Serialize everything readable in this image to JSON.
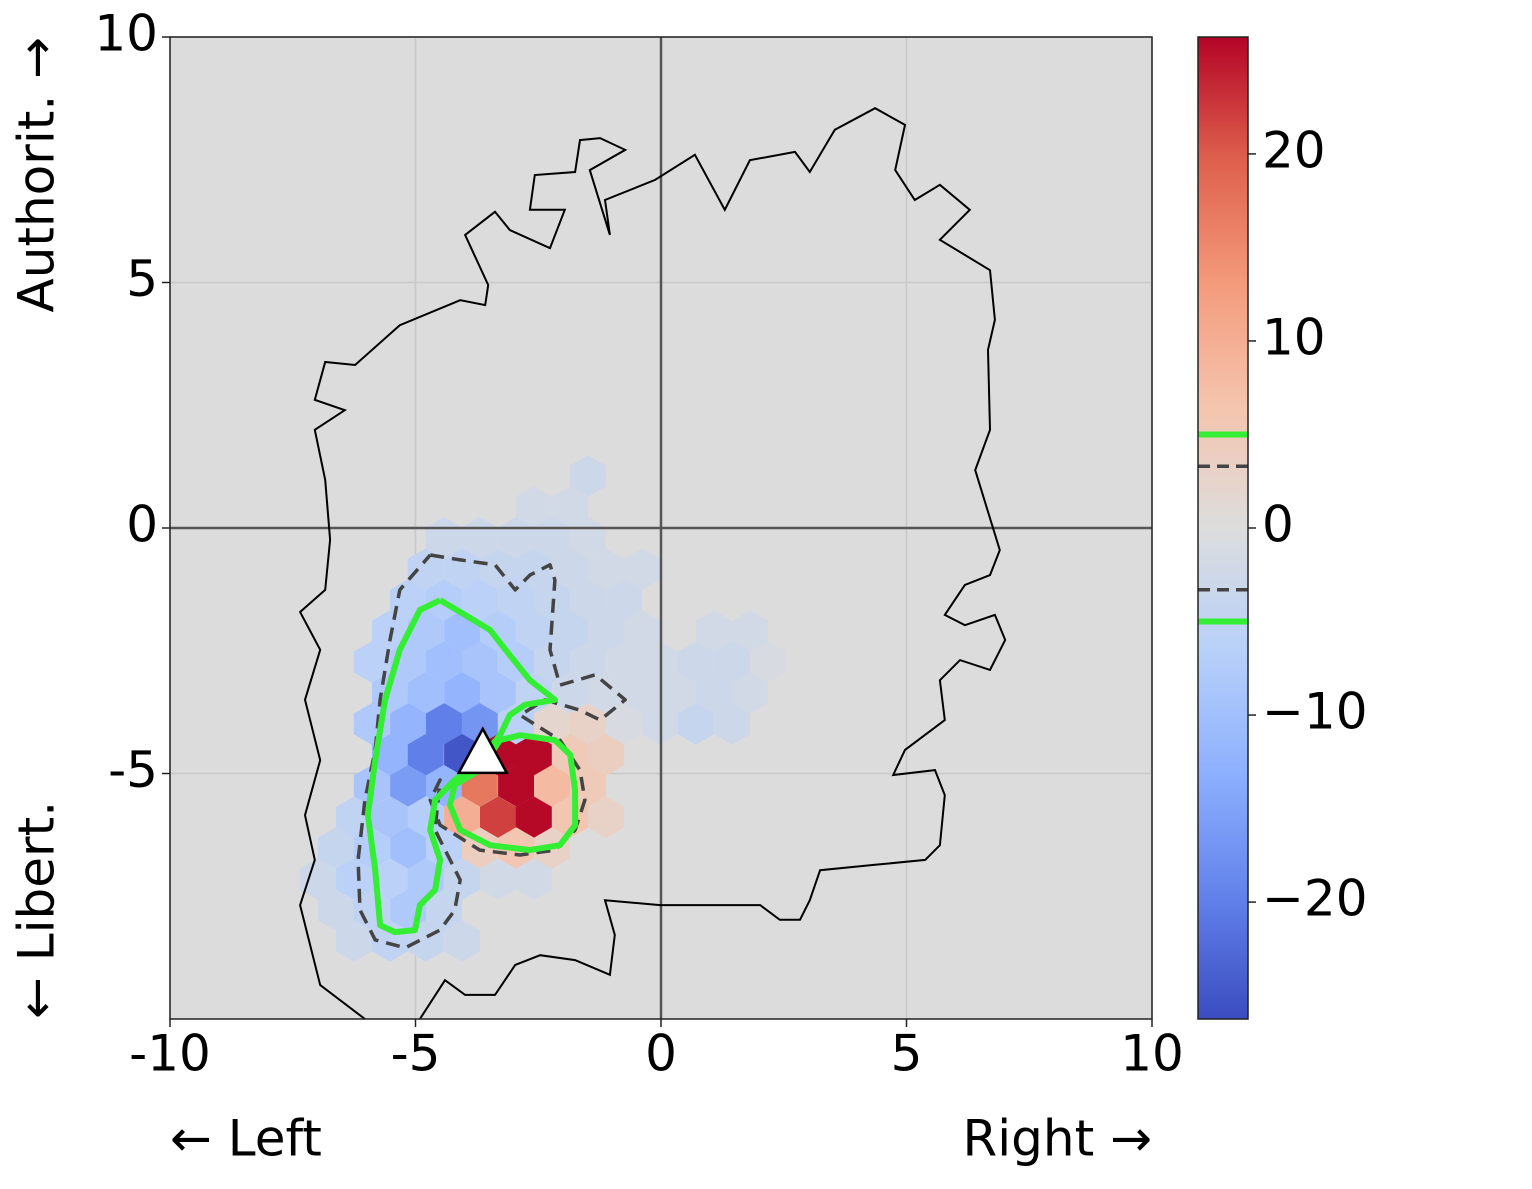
{
  "chart_data": {
    "type": "hexbin",
    "xlabel_left": "← Left",
    "xlabel_right": "Right →",
    "ylabel_bottom": "← Libert.",
    "ylabel_top": "Authorit. →",
    "xlim": [
      -10,
      10
    ],
    "ylim": [
      -10,
      10
    ],
    "xticks": [
      -10,
      -5,
      0,
      5,
      10
    ],
    "yticks": [
      -5,
      0,
      5,
      10
    ],
    "grid": true,
    "background": "#dcdcdc",
    "colormap": "coolwarm",
    "clim": [
      -26.25,
      26.25
    ],
    "cticks": [
      {
        "value": -20,
        "label": "−20"
      },
      {
        "value": -10,
        "label": "−10"
      },
      0,
      10,
      20
    ],
    "hexbin": {
      "x": [
        -1.49,
        -2.59,
        -1.85,
        -4.42,
        -3.69,
        -2.95,
        -2.22,
        -1.49,
        -4.79,
        -4.05,
        -3.32,
        -2.59,
        -1.85,
        -1.12,
        -0.39,
        -5.15,
        -4.42,
        -3.69,
        -2.95,
        -2.22,
        -1.49,
        -0.75,
        -5.52,
        -4.79,
        -4.05,
        -3.32,
        -2.59,
        -1.85,
        -1.12,
        -0.39,
        1.08,
        1.81,
        -5.89,
        -5.15,
        -4.42,
        -3.69,
        -2.95,
        -2.22,
        -1.49,
        -0.75,
        -0.02,
        0.71,
        1.45,
        2.18,
        -5.52,
        -4.79,
        -4.05,
        -3.32,
        -2.59,
        -1.85,
        -1.12,
        -0.39,
        0.35,
        1.08,
        1.81,
        -5.89,
        -5.15,
        -4.42,
        -3.69,
        -2.95,
        -2.22,
        -1.49,
        -0.75,
        -0.02,
        0.71,
        1.45,
        -5.52,
        -4.79,
        -4.05,
        -3.32,
        -2.59,
        -1.85,
        -1.12,
        -5.89,
        -5.15,
        -4.42,
        -3.69,
        -2.95,
        -2.22,
        -1.49,
        -6.25,
        -5.52,
        -4.79,
        -4.05,
        -3.32,
        -2.59,
        -1.85,
        -1.12,
        -6.62,
        -5.89,
        -5.15,
        -4.42,
        -3.69,
        -2.95,
        -2.22,
        -6.99,
        -6.25,
        -5.52,
        -4.79,
        -4.05,
        -3.32,
        -2.59,
        -6.62,
        -5.89,
        -5.15,
        -4.42,
        -6.25,
        -5.52,
        -4.79,
        -4.05
      ],
      "y": [
        1.06,
        0.43,
        0.43,
        -0.2,
        -0.2,
        -0.2,
        -0.2,
        -0.2,
        -0.84,
        -0.84,
        -0.84,
        -0.84,
        -0.84,
        -0.84,
        -0.84,
        -1.47,
        -1.47,
        -1.47,
        -1.47,
        -1.47,
        -1.47,
        -1.47,
        -2.1,
        -2.1,
        -2.1,
        -2.1,
        -2.1,
        -2.1,
        -2.1,
        -2.1,
        -2.1,
        -2.1,
        -2.73,
        -2.73,
        -2.73,
        -2.73,
        -2.73,
        -2.73,
        -2.73,
        -2.73,
        -2.73,
        -2.73,
        -2.73,
        -2.73,
        -3.36,
        -3.36,
        -3.36,
        -3.36,
        -3.36,
        -3.36,
        -3.36,
        -3.36,
        -3.36,
        -3.36,
        -3.36,
        -3.99,
        -3.99,
        -3.99,
        -3.99,
        -3.99,
        -3.99,
        -3.99,
        -3.99,
        -3.99,
        -3.99,
        -3.99,
        -4.62,
        -4.62,
        -4.62,
        -4.62,
        -4.62,
        -4.62,
        -4.62,
        -5.25,
        -5.25,
        -5.25,
        -5.25,
        -5.25,
        -5.25,
        -5.25,
        -5.89,
        -5.89,
        -5.89,
        -5.89,
        -5.89,
        -5.89,
        -5.89,
        -5.89,
        -6.52,
        -6.52,
        -6.52,
        -6.52,
        -6.52,
        -6.52,
        -6.52,
        -7.15,
        -7.15,
        -7.15,
        -7.15,
        -7.15,
        -7.15,
        -7.15,
        -7.78,
        -7.78,
        -7.78,
        -7.78,
        -8.41,
        -8.41,
        -8.41,
        -8.41
      ],
      "values": [
        -3,
        -2,
        -2,
        -3,
        -3,
        -3,
        -3,
        -2,
        -5,
        -5,
        -4,
        -4,
        -3,
        -2,
        -2,
        -6,
        -7,
        -6,
        -5,
        -4,
        -3,
        -3,
        -6,
        -8,
        -10,
        -7,
        -5,
        -4,
        -3,
        -2,
        -2,
        -2,
        -6,
        -8,
        -10,
        -9,
        -7,
        -4,
        -3,
        -2,
        -2,
        -3,
        -3,
        -1,
        -8,
        -10,
        -12,
        -9,
        -5,
        -3,
        -2,
        -2,
        -2,
        -3,
        -2,
        -8,
        -12,
        -20,
        -17,
        -6,
        2,
        3,
        -1,
        -2,
        -4,
        -3,
        -12,
        -20,
        -25,
        26,
        26,
        5,
        4,
        -9,
        -16,
        -12,
        17,
        26,
        8,
        5,
        -5,
        -9,
        -7,
        10,
        22,
        26,
        6,
        3,
        -4,
        -7,
        -10,
        -6,
        4,
        6,
        3,
        -3,
        -6,
        -6,
        -8,
        -4,
        -2,
        -2,
        -3,
        -5,
        -8,
        -4,
        -3,
        -5,
        -4,
        -3
      ]
    },
    "levels": [
      {
        "value": -5,
        "color": "#33ee33",
        "dashed": false
      },
      {
        "value": -3.3,
        "color": "#444444",
        "dashed": true
      },
      {
        "value": 3.3,
        "color": "#444444",
        "dashed": true
      },
      {
        "value": 5,
        "color": "#33ee33",
        "dashed": false
      }
    ],
    "contours": [
      {
        "level": -3.3,
        "points": [
          [
            -4.7,
            -0.55
          ],
          [
            -4.09,
            -0.65
          ],
          [
            -3.38,
            -0.75
          ],
          [
            -2.97,
            -1.26
          ],
          [
            -2.67,
            -0.96
          ],
          [
            -2.26,
            -0.75
          ],
          [
            -2.16,
            -1.06
          ],
          [
            -2.26,
            -2.48
          ],
          [
            -2.06,
            -3.2
          ],
          [
            -1.34,
            -2.99
          ],
          [
            -0.73,
            -3.5
          ],
          [
            -1.24,
            -3.91
          ],
          [
            -1.65,
            -3.71
          ],
          [
            -2.36,
            -3.5
          ],
          [
            -2.87,
            -3.81
          ],
          [
            -2.06,
            -4.32
          ],
          [
            -1.65,
            -4.93
          ],
          [
            -1.55,
            -5.54
          ],
          [
            -1.75,
            -6.15
          ],
          [
            -2.16,
            -6.56
          ],
          [
            -2.87,
            -6.66
          ],
          [
            -3.69,
            -6.56
          ],
          [
            -4.5,
            -6.05
          ],
          [
            -4.7,
            -5.54
          ],
          [
            -4.5,
            -5.13
          ],
          [
            -4.6,
            -6.15
          ],
          [
            -4.09,
            -7.17
          ],
          [
            -4.2,
            -7.78
          ],
          [
            -4.5,
            -8.19
          ],
          [
            -5.21,
            -8.55
          ],
          [
            -5.82,
            -8.39
          ],
          [
            -6.13,
            -7.78
          ],
          [
            -6.17,
            -6.76
          ],
          [
            -6.03,
            -5.54
          ],
          [
            -5.82,
            -4.52
          ],
          [
            -5.72,
            -3.5
          ],
          [
            -5.52,
            -2.28
          ],
          [
            -5.32,
            -1.26
          ],
          [
            -4.7,
            -0.55
          ]
        ]
      },
      {
        "level": -5,
        "points": [
          [
            -4.5,
            -1.47
          ],
          [
            -3.99,
            -1.77
          ],
          [
            -3.48,
            -2.08
          ],
          [
            -3.08,
            -2.59
          ],
          [
            -2.67,
            -3.1
          ],
          [
            -2.16,
            -3.5
          ],
          [
            -2.77,
            -3.6
          ],
          [
            -3.08,
            -3.81
          ],
          [
            -3.28,
            -4.22
          ],
          [
            -3.69,
            -4.73
          ],
          [
            -4.2,
            -5.13
          ],
          [
            -4.6,
            -5.54
          ],
          [
            -4.7,
            -6.15
          ],
          [
            -4.5,
            -6.76
          ],
          [
            -4.6,
            -7.37
          ],
          [
            -4.91,
            -7.68
          ],
          [
            -5.01,
            -8.19
          ],
          [
            -5.42,
            -8.23
          ],
          [
            -5.72,
            -8.09
          ],
          [
            -5.82,
            -6.97
          ],
          [
            -5.97,
            -5.85
          ],
          [
            -5.82,
            -4.73
          ],
          [
            -5.62,
            -3.5
          ],
          [
            -5.32,
            -2.48
          ],
          [
            -4.91,
            -1.67
          ],
          [
            -4.5,
            -1.47
          ]
        ]
      },
      {
        "level": 5,
        "points": [
          [
            -3.28,
            -4.32
          ],
          [
            -2.87,
            -4.22
          ],
          [
            -2.16,
            -4.32
          ],
          [
            -1.85,
            -4.62
          ],
          [
            -1.75,
            -5.34
          ],
          [
            -1.75,
            -6.05
          ],
          [
            -2.06,
            -6.46
          ],
          [
            -2.67,
            -6.56
          ],
          [
            -3.48,
            -6.46
          ],
          [
            -4.09,
            -6.15
          ],
          [
            -4.3,
            -5.64
          ],
          [
            -4.2,
            -5.23
          ],
          [
            -3.69,
            -4.93
          ],
          [
            -3.28,
            -4.32
          ]
        ]
      }
    ],
    "outline": {
      "color": "#000000",
      "points": [
        [
          -6.03,
          -10
        ],
        [
          -6.94,
          -9.31
        ],
        [
          -7.35,
          -7.68
        ],
        [
          -7.05,
          -6.76
        ],
        [
          -7.25,
          -5.85
        ],
        [
          -6.94,
          -4.73
        ],
        [
          -7.25,
          -3.5
        ],
        [
          -6.94,
          -2.48
        ],
        [
          -7.35,
          -1.71
        ],
        [
          -6.84,
          -1.26
        ],
        [
          -6.74,
          -0.24
        ],
        [
          -6.84,
          0.98
        ],
        [
          -7.05,
          2
        ],
        [
          -6.44,
          2.4
        ],
        [
          -7.05,
          2.61
        ],
        [
          -6.84,
          3.38
        ],
        [
          -6.23,
          3.32
        ],
        [
          -5.32,
          4.13
        ],
        [
          -4.09,
          4.64
        ],
        [
          -3.58,
          4.54
        ],
        [
          -3.52,
          4.95
        ],
        [
          -3.99,
          5.97
        ],
        [
          -3.38,
          6.44
        ],
        [
          -3.08,
          6.07
        ],
        [
          -2.26,
          5.7
        ],
        [
          -1.96,
          6.48
        ],
        [
          -2.67,
          6.48
        ],
        [
          -2.57,
          7.19
        ],
        [
          -1.75,
          7.25
        ],
        [
          -1.65,
          7.9
        ],
        [
          -1.24,
          7.94
        ],
        [
          -0.73,
          7.7
        ],
        [
          -1.45,
          7.29
        ],
        [
          -1.04,
          5.97
        ],
        [
          -1.14,
          6.68
        ],
        [
          -0.12,
          7.09
        ],
        [
          0.69,
          7.6
        ],
        [
          1.3,
          6.48
        ],
        [
          1.81,
          7.49
        ],
        [
          2.73,
          7.66
        ],
        [
          3.03,
          7.25
        ],
        [
          3.54,
          8.11
        ],
        [
          4.36,
          8.55
        ],
        [
          4.97,
          8.21
        ],
        [
          4.77,
          7.29
        ],
        [
          5.17,
          6.68
        ],
        [
          5.68,
          6.99
        ],
        [
          6.29,
          6.48
        ],
        [
          5.68,
          5.87
        ],
        [
          6.7,
          5.25
        ],
        [
          6.8,
          4.24
        ],
        [
          6.66,
          3.63
        ],
        [
          6.7,
          2
        ],
        [
          6.4,
          1.18
        ],
        [
          6.9,
          -0.45
        ],
        [
          6.7,
          -0.96
        ],
        [
          6.19,
          -1.16
        ],
        [
          5.78,
          -1.77
        ],
        [
          6.19,
          -1.98
        ],
        [
          6.8,
          -1.77
        ],
        [
          7.01,
          -2.28
        ],
        [
          6.7,
          -2.89
        ],
        [
          6.09,
          -2.69
        ],
        [
          5.68,
          -3.1
        ],
        [
          5.78,
          -3.91
        ],
        [
          4.97,
          -4.52
        ],
        [
          4.73,
          -5.03
        ],
        [
          5.58,
          -4.93
        ],
        [
          5.78,
          -5.44
        ],
        [
          5.68,
          -6.46
        ],
        [
          5.38,
          -6.76
        ],
        [
          4.36,
          -6.86
        ],
        [
          3.24,
          -6.97
        ],
        [
          3.03,
          -7.58
        ],
        [
          2.83,
          -7.98
        ],
        [
          2.42,
          -7.98
        ],
        [
          2.02,
          -7.68
        ],
        [
          -0.02,
          -7.68
        ],
        [
          -1.14,
          -7.58
        ],
        [
          -0.94,
          -8.29
        ],
        [
          -1.04,
          -9.1
        ],
        [
          -1.75,
          -8.8
        ],
        [
          -2.46,
          -8.7
        ],
        [
          -2.97,
          -8.9
        ],
        [
          -3.38,
          -9.51
        ],
        [
          -3.99,
          -9.51
        ],
        [
          -4.4,
          -9.21
        ],
        [
          -4.91,
          -10
        ]
      ]
    },
    "marker": {
      "x": -3.63,
      "y": -4.62
    }
  }
}
